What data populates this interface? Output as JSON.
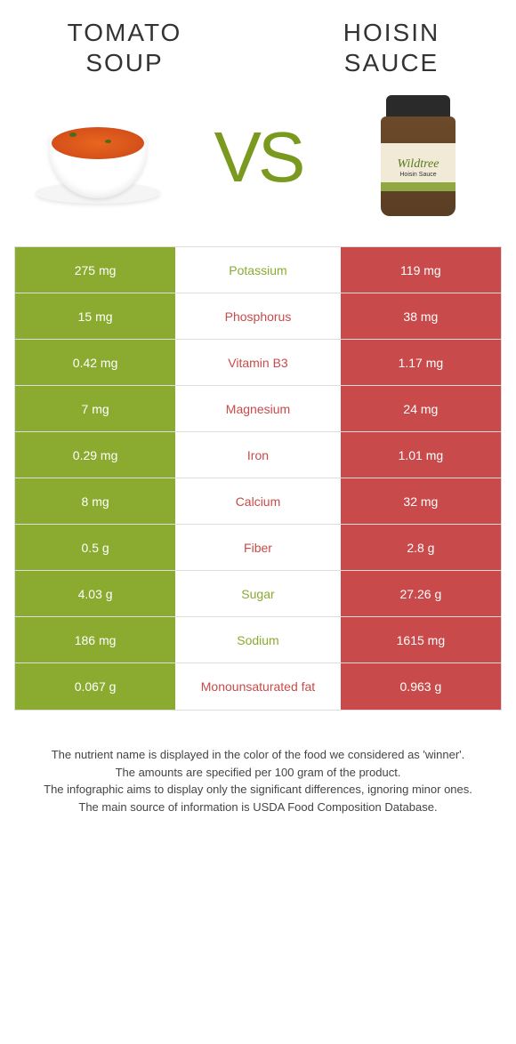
{
  "food1": {
    "title": "TOMATO SOUP"
  },
  "food2": {
    "title": "HOISIN SAUCE"
  },
  "vs_text": "VS",
  "colors": {
    "food1": "#8aab2f",
    "food2": "#c94a4a",
    "vs": "#7a9a1f",
    "text_on_color": "#ffffff",
    "border": "#dddddd"
  },
  "jar": {
    "brand": "Wildtree",
    "sub": "Hoisin Sauce"
  },
  "rows": [
    {
      "nutrient": "Potassium",
      "left": "275 mg",
      "right": "119 mg",
      "winner": "food1"
    },
    {
      "nutrient": "Phosphorus",
      "left": "15 mg",
      "right": "38 mg",
      "winner": "food2"
    },
    {
      "nutrient": "Vitamin B3",
      "left": "0.42 mg",
      "right": "1.17 mg",
      "winner": "food2"
    },
    {
      "nutrient": "Magnesium",
      "left": "7 mg",
      "right": "24 mg",
      "winner": "food2"
    },
    {
      "nutrient": "Iron",
      "left": "0.29 mg",
      "right": "1.01 mg",
      "winner": "food2"
    },
    {
      "nutrient": "Calcium",
      "left": "8 mg",
      "right": "32 mg",
      "winner": "food2"
    },
    {
      "nutrient": "Fiber",
      "left": "0.5 g",
      "right": "2.8 g",
      "winner": "food2"
    },
    {
      "nutrient": "Sugar",
      "left": "4.03 g",
      "right": "27.26 g",
      "winner": "food1"
    },
    {
      "nutrient": "Sodium",
      "left": "186 mg",
      "right": "1615 mg",
      "winner": "food1"
    },
    {
      "nutrient": "Monounsaturated fat",
      "left": "0.067 g",
      "right": "0.963 g",
      "winner": "food2"
    }
  ],
  "footnotes": [
    "The nutrient name is displayed in the color of the food we considered as 'winner'.",
    "The amounts are specified per 100 gram of the product.",
    "The infographic aims to display only the significant differences, ignoring minor ones.",
    "The main source of information is USDA Food Composition Database."
  ]
}
